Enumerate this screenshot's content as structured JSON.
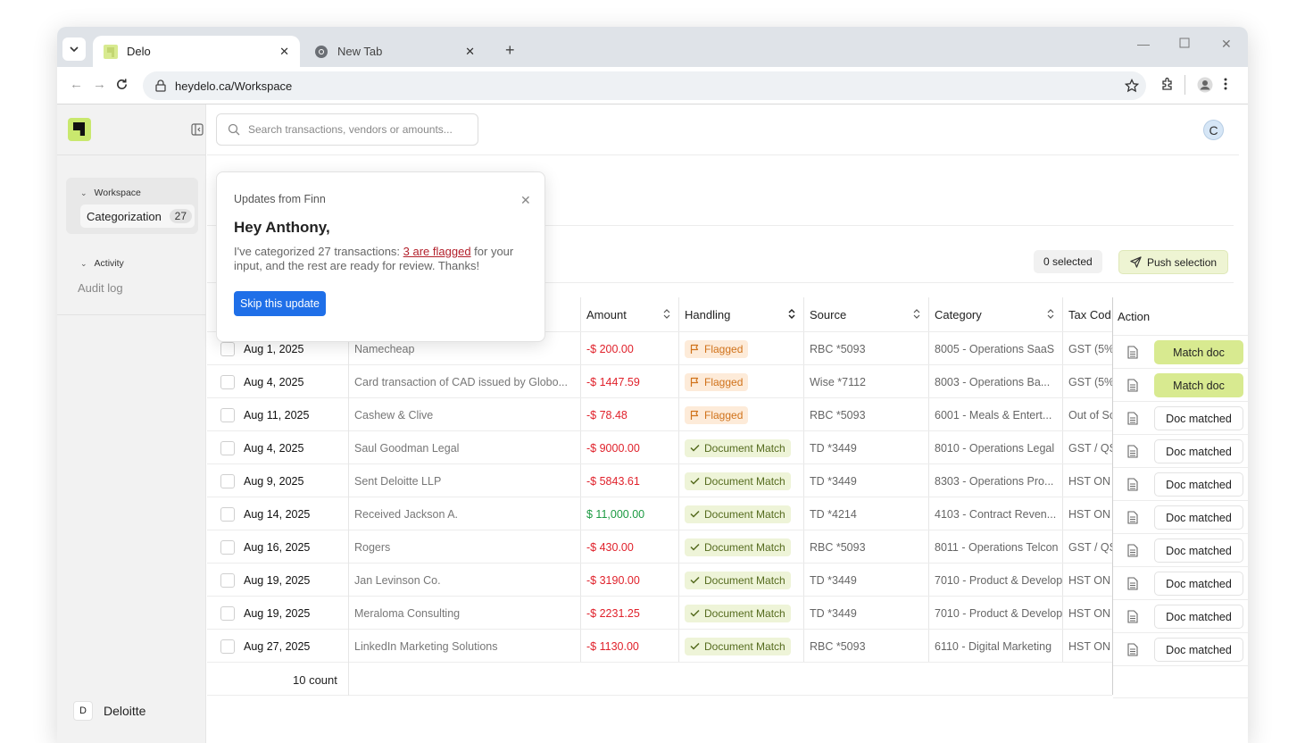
{
  "browser": {
    "tabs": [
      {
        "title": "Delo",
        "active": true
      },
      {
        "title": "New Tab",
        "active": false
      }
    ],
    "url": "heydelo.ca/Workspace"
  },
  "sidebar": {
    "workspace_label": "Workspace",
    "categorization_label": "Categorization",
    "categorization_count": "27",
    "activity_label": "Activity",
    "audit_label": "Audit log",
    "org_initial": "D",
    "org_name": "Deloitte"
  },
  "header": {
    "search_placeholder": "Search transactions, vendors or amounts...",
    "avatar_initial": "C"
  },
  "selection": {
    "selected_text": "0 selected",
    "push_label": "Push selection"
  },
  "table": {
    "columns": {
      "amount": "Amount",
      "handling": "Handling",
      "source": "Source",
      "category": "Category",
      "tax": "Tax Cod",
      "action": "Action"
    },
    "rows": [
      {
        "date": "Aug 1, 2025",
        "vendor": "Namecheap",
        "amount": "-$ 200.00",
        "amount_sign": "neg",
        "handling": "Flagged",
        "handling_type": "flag",
        "source": "RBC *5093",
        "category": "8005 - Operations SaaS",
        "tax": "GST (5%",
        "action": "Match doc",
        "action_type": "match"
      },
      {
        "date": "Aug 4, 2025",
        "vendor": "Card transaction of CAD issued by Globo...",
        "amount": "-$ 1447.59",
        "amount_sign": "neg",
        "handling": "Flagged",
        "handling_type": "flag",
        "source": "Wise *7112",
        "category": "8003 - Operations Ba...",
        "tax": "GST (5%",
        "action": "Match doc",
        "action_type": "match"
      },
      {
        "date": "Aug 11, 2025",
        "vendor": "Cashew & Clive",
        "amount": "-$ 78.48",
        "amount_sign": "neg",
        "handling": "Flagged",
        "handling_type": "flag",
        "source": "RBC *5093",
        "category": "6001 - Meals & Entert...",
        "tax": "Out of Sc",
        "action": "Doc matched",
        "action_type": "matched"
      },
      {
        "date": "Aug 4, 2025",
        "vendor": "Saul Goodman Legal",
        "amount": "-$ 9000.00",
        "amount_sign": "neg",
        "handling": "Document Match",
        "handling_type": "match",
        "source": "TD *3449",
        "category": "8010 - Operations Legal",
        "tax": "GST / QS",
        "action": "Doc matched",
        "action_type": "matched"
      },
      {
        "date": "Aug 9, 2025",
        "vendor": "Sent Deloitte LLP",
        "amount": "-$ 5843.61",
        "amount_sign": "neg",
        "handling": "Document Match",
        "handling_type": "match",
        "source": "TD *3449",
        "category": "8303 - Operations Pro...",
        "tax": "HST ON",
        "action": "Doc matched",
        "action_type": "matched"
      },
      {
        "date": "Aug 14, 2025",
        "vendor": "Received Jackson A.",
        "amount": "$ 11,000.00",
        "amount_sign": "pos",
        "handling": "Document Match",
        "handling_type": "match",
        "source": "TD *4214",
        "category": "4103 - Contract Reven...",
        "tax": "HST ON",
        "action": "Doc matched",
        "action_type": "matched"
      },
      {
        "date": "Aug 16, 2025",
        "vendor": "Rogers",
        "amount": "-$ 430.00",
        "amount_sign": "neg",
        "handling": "Document Match",
        "handling_type": "match",
        "source": "RBC *5093",
        "category": "8011 - Operations Telcon",
        "tax": "GST / QS",
        "action": "Doc matched",
        "action_type": "matched"
      },
      {
        "date": "Aug 19, 2025",
        "vendor": "Jan Levinson Co.",
        "amount": "-$ 3190.00",
        "amount_sign": "neg",
        "handling": "Document Match",
        "handling_type": "match",
        "source": "TD *3449",
        "category": "7010 - Product & Develop",
        "tax": "HST ON",
        "action": "Doc matched",
        "action_type": "matched"
      },
      {
        "date": "Aug 19, 2025",
        "vendor": "Meraloma Consulting",
        "amount": "-$ 2231.25",
        "amount_sign": "neg",
        "handling": "Document Match",
        "handling_type": "match",
        "source": "TD *3449",
        "category": "7010 - Product & Develop",
        "tax": "HST ON",
        "action": "Doc matched",
        "action_type": "matched"
      },
      {
        "date": "Aug 27, 2025",
        "vendor": "LinkedIn Marketing Solutions",
        "amount": "-$ 1130.00",
        "amount_sign": "neg",
        "handling": "Document Match",
        "handling_type": "match",
        "source": "RBC *5093",
        "category": "6110 - Digital Marketing",
        "tax": "HST ON",
        "action": "Doc matched",
        "action_type": "matched"
      }
    ],
    "footer_count": "10 count"
  },
  "popup": {
    "title": "Updates from Finn",
    "heading": "Hey Anthony,",
    "body_before": "I've categorized 27 transactions: ",
    "body_link": "3 are flagged",
    "body_after": " for your input, and the rest are ready for review. Thanks!",
    "button_label": "Skip this update"
  },
  "colors": {
    "negative": "#e0212b",
    "positive": "#1c9a42",
    "flag_bg": "#fdebd9",
    "match_bg": "#eef4d8",
    "primary": "#1f6fe8",
    "accent": "#d8ea90"
  }
}
